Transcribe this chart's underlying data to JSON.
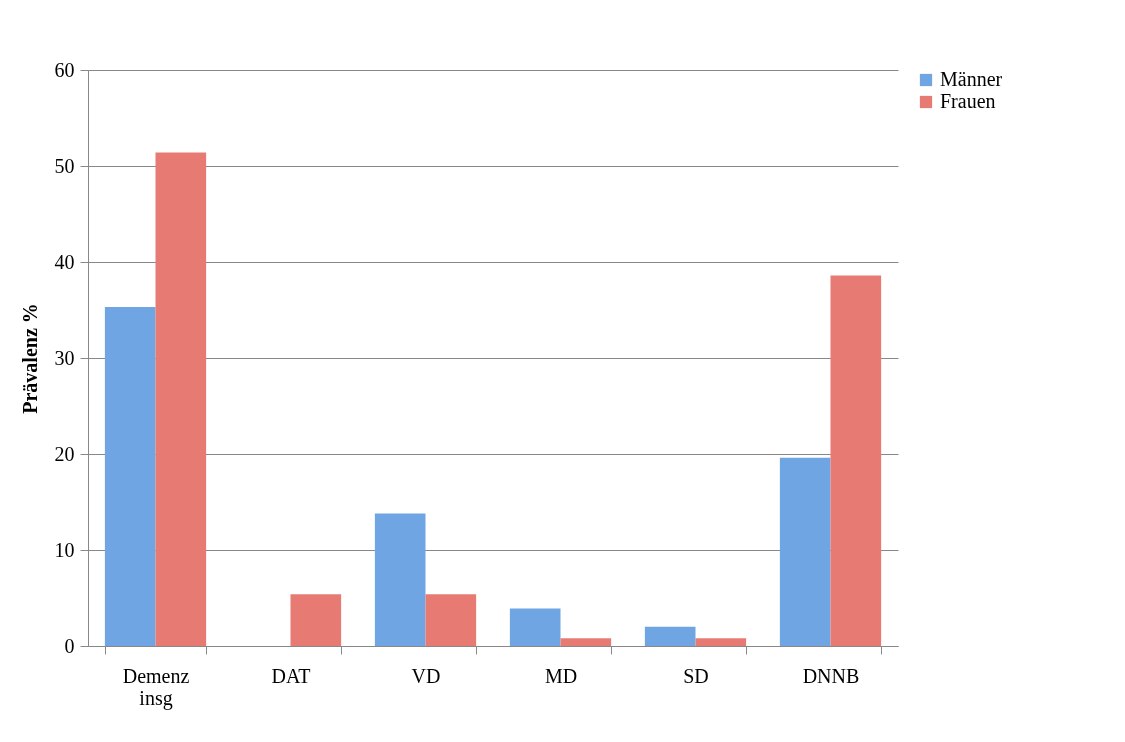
{
  "chart_data": {
    "type": "bar",
    "ylabel": "Prävalenz %",
    "categories": [
      "Demenz insg",
      "DAT",
      "VD",
      "MD",
      "SD",
      "DNNB"
    ],
    "series": [
      {
        "name": "Männer",
        "color": "#6fa5e3",
        "values": [
          35.3,
          0,
          13.8,
          3.9,
          2.0,
          19.6
        ]
      },
      {
        "name": "Frauen",
        "color": "#e77a72",
        "values": [
          51.4,
          5.4,
          5.4,
          0.8,
          0.8,
          38.6
        ]
      }
    ],
    "ylim": [
      0,
      60
    ],
    "yticks": [
      0,
      10,
      20,
      30,
      40,
      50,
      60
    ],
    "grid": "y",
    "legend": "right"
  }
}
